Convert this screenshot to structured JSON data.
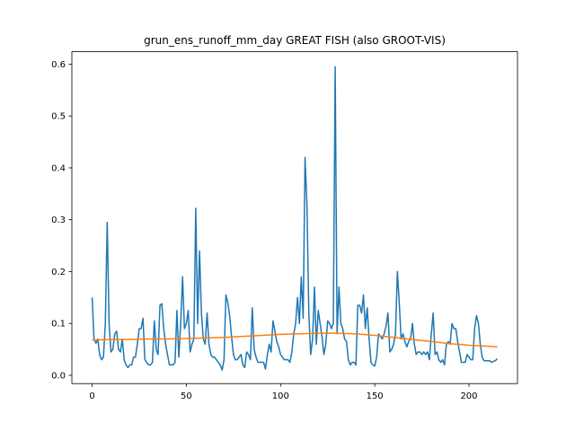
{
  "chart_data": {
    "type": "line",
    "title": "grun_ens_runoff_mm_day GREAT FISH (also GROOT-VIS)",
    "xlim": [
      -10.75,
      225.75
    ],
    "xticks": [
      0,
      50,
      100,
      150,
      200
    ],
    "ylim": [
      -0.016,
      0.624
    ],
    "yticks": [
      {
        "value": 0,
        "label": "0.0"
      },
      0.1,
      0.2,
      0.3,
      0.4,
      0.5,
      0.6
    ],
    "grid": false,
    "series": [
      {
        "color": "#1f77b4",
        "x": [
          0,
          1,
          2,
          3,
          4,
          5,
          6,
          7,
          8,
          9,
          10,
          11,
          12,
          13,
          14,
          15,
          16,
          17,
          18,
          19,
          20,
          21,
          22,
          23,
          24,
          25,
          26,
          27,
          28,
          29,
          30,
          31,
          32,
          33,
          34,
          35,
          36,
          37,
          38,
          39,
          40,
          41,
          42,
          43,
          44,
          45,
          46,
          47,
          48,
          49,
          50,
          51,
          52,
          53,
          54,
          55,
          56,
          57,
          58,
          59,
          60,
          61,
          62,
          63,
          64,
          65,
          66,
          67,
          68,
          69,
          70,
          71,
          72,
          73,
          74,
          75,
          76,
          77,
          78,
          79,
          80,
          81,
          82,
          83,
          84,
          85,
          86,
          87,
          88,
          89,
          90,
          91,
          92,
          93,
          94,
          95,
          96,
          97,
          98,
          99,
          100,
          101,
          102,
          103,
          104,
          105,
          106,
          107,
          108,
          109,
          110,
          111,
          112,
          113,
          114,
          115,
          116,
          117,
          118,
          119,
          120,
          121,
          122,
          123,
          124,
          125,
          126,
          127,
          128,
          129,
          130,
          131,
          132,
          133,
          134,
          135,
          136,
          137,
          138,
          139,
          140,
          141,
          142,
          143,
          144,
          145,
          146,
          147,
          148,
          149,
          150,
          151,
          152,
          153,
          154,
          155,
          156,
          157,
          158,
          159,
          160,
          161,
          162,
          163,
          164,
          165,
          166,
          167,
          168,
          169,
          170,
          171,
          172,
          173,
          174,
          175,
          176,
          177,
          178,
          179,
          180,
          181,
          182,
          183,
          184,
          185,
          186,
          187,
          188,
          189,
          190,
          191,
          192,
          193,
          194,
          195,
          196,
          197,
          198,
          199,
          200,
          201,
          202,
          203,
          204,
          205,
          206,
          207,
          208,
          209,
          210,
          211,
          212,
          213,
          214,
          215
        ],
        "values": [
          0.15,
          0.07,
          0.062,
          0.07,
          0.04,
          0.03,
          0.035,
          0.1,
          0.295,
          0.1,
          0.045,
          0.05,
          0.08,
          0.085,
          0.05,
          0.045,
          0.07,
          0.03,
          0.02,
          0.015,
          0.02,
          0.02,
          0.035,
          0.035,
          0.06,
          0.09,
          0.09,
          0.11,
          0.03,
          0.025,
          0.02,
          0.02,
          0.025,
          0.105,
          0.05,
          0.04,
          0.135,
          0.138,
          0.09,
          0.06,
          0.04,
          0.02,
          0.02,
          0.02,
          0.025,
          0.125,
          0.035,
          0.1,
          0.19,
          0.09,
          0.1,
          0.125,
          0.045,
          0.06,
          0.07,
          0.322,
          0.1,
          0.24,
          0.12,
          0.07,
          0.06,
          0.12,
          0.06,
          0.04,
          0.035,
          0.035,
          0.03,
          0.025,
          0.02,
          0.01,
          0.03,
          0.155,
          0.14,
          0.115,
          0.075,
          0.04,
          0.03,
          0.03,
          0.035,
          0.04,
          0.02,
          0.015,
          0.045,
          0.04,
          0.03,
          0.13,
          0.05,
          0.035,
          0.025,
          0.025,
          0.025,
          0.025,
          0.012,
          0.04,
          0.06,
          0.045,
          0.105,
          0.085,
          0.065,
          0.055,
          0.04,
          0.035,
          0.03,
          0.03,
          0.03,
          0.025,
          0.045,
          0.08,
          0.1,
          0.15,
          0.1,
          0.19,
          0.11,
          0.42,
          0.33,
          0.12,
          0.04,
          0.07,
          0.17,
          0.06,
          0.125,
          0.1,
          0.075,
          0.04,
          0.06,
          0.105,
          0.1,
          0.09,
          0.1,
          0.595,
          0.08,
          0.17,
          0.1,
          0.09,
          0.07,
          0.065,
          0.03,
          0.02,
          0.025,
          0.025,
          0.02,
          0.135,
          0.135,
          0.12,
          0.155,
          0.09,
          0.13,
          0.07,
          0.025,
          0.02,
          0.018,
          0.035,
          0.08,
          0.075,
          0.07,
          0.08,
          0.095,
          0.12,
          0.045,
          0.05,
          0.06,
          0.08,
          0.2,
          0.14,
          0.07,
          0.08,
          0.065,
          0.055,
          0.065,
          0.07,
          0.1,
          0.06,
          0.04,
          0.045,
          0.045,
          0.04,
          0.045,
          0.04,
          0.045,
          0.03,
          0.08,
          0.12,
          0.04,
          0.045,
          0.03,
          0.025,
          0.03,
          0.02,
          0.06,
          0.065,
          0.06,
          0.1,
          0.09,
          0.09,
          0.065,
          0.045,
          0.025,
          0.025,
          0.025,
          0.04,
          0.035,
          0.03,
          0.03,
          0.09,
          0.115,
          0.1,
          0.06,
          0.035,
          0.028,
          0.028,
          0.028,
          0.028,
          0.025,
          0.027,
          0.028,
          0.032
        ]
      },
      {
        "color": "#ff7f0e",
        "x": [
          0,
          10,
          20,
          30,
          40,
          50,
          60,
          70,
          80,
          90,
          100,
          110,
          120,
          130,
          140,
          150,
          160,
          170,
          180,
          190,
          200,
          210,
          215
        ],
        "values": [
          0.068,
          0.069,
          0.069,
          0.07,
          0.07,
          0.071,
          0.072,
          0.073,
          0.075,
          0.077,
          0.079,
          0.08,
          0.081,
          0.081,
          0.08,
          0.077,
          0.073,
          0.069,
          0.065,
          0.061,
          0.058,
          0.056,
          0.055
        ]
      }
    ]
  }
}
